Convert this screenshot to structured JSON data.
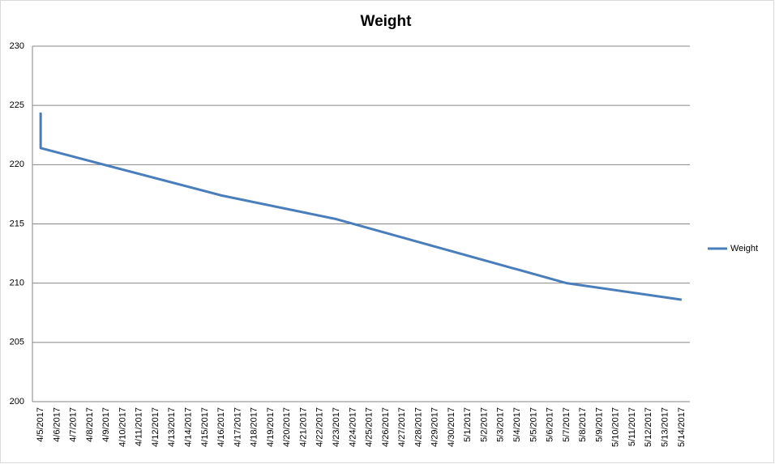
{
  "chart_data": {
    "type": "line",
    "title": "Weight",
    "x": [
      "4/5/2017",
      "4/5/2017",
      "4/16/2017",
      "4/23/2017",
      "5/7/2017",
      "5/14/2017"
    ],
    "series": [
      {
        "name": "Weight",
        "color": "#4a7ebb",
        "values": [
          224.4,
          221.4,
          217.4,
          215.4,
          210.0,
          208.6
        ]
      }
    ],
    "xlim": [
      "4/5/2017",
      "5/14/2017"
    ],
    "xticks": [
      "4/5/2017",
      "4/6/2017",
      "4/7/2017",
      "4/8/2017",
      "4/9/2017",
      "4/10/2017",
      "4/11/2017",
      "4/12/2017",
      "4/13/2017",
      "4/14/2017",
      "4/15/2017",
      "4/16/2017",
      "4/17/2017",
      "4/18/2017",
      "4/19/2017",
      "4/20/2017",
      "4/21/2017",
      "4/22/2017",
      "4/23/2017",
      "4/24/2017",
      "4/25/2017",
      "4/26/2017",
      "4/27/2017",
      "4/28/2017",
      "4/29/2017",
      "4/30/2017",
      "5/1/2017",
      "5/2/2017",
      "5/3/2017",
      "5/4/2017",
      "5/5/2017",
      "5/6/2017",
      "5/7/2017",
      "5/8/2017",
      "5/9/2017",
      "5/10/2017",
      "5/11/2017",
      "5/12/2017",
      "5/13/2017",
      "5/14/2017"
    ],
    "ylim": [
      200,
      230
    ],
    "yticks": [
      200,
      205,
      210,
      215,
      220,
      225,
      230
    ],
    "grid": true,
    "legend": "right"
  }
}
